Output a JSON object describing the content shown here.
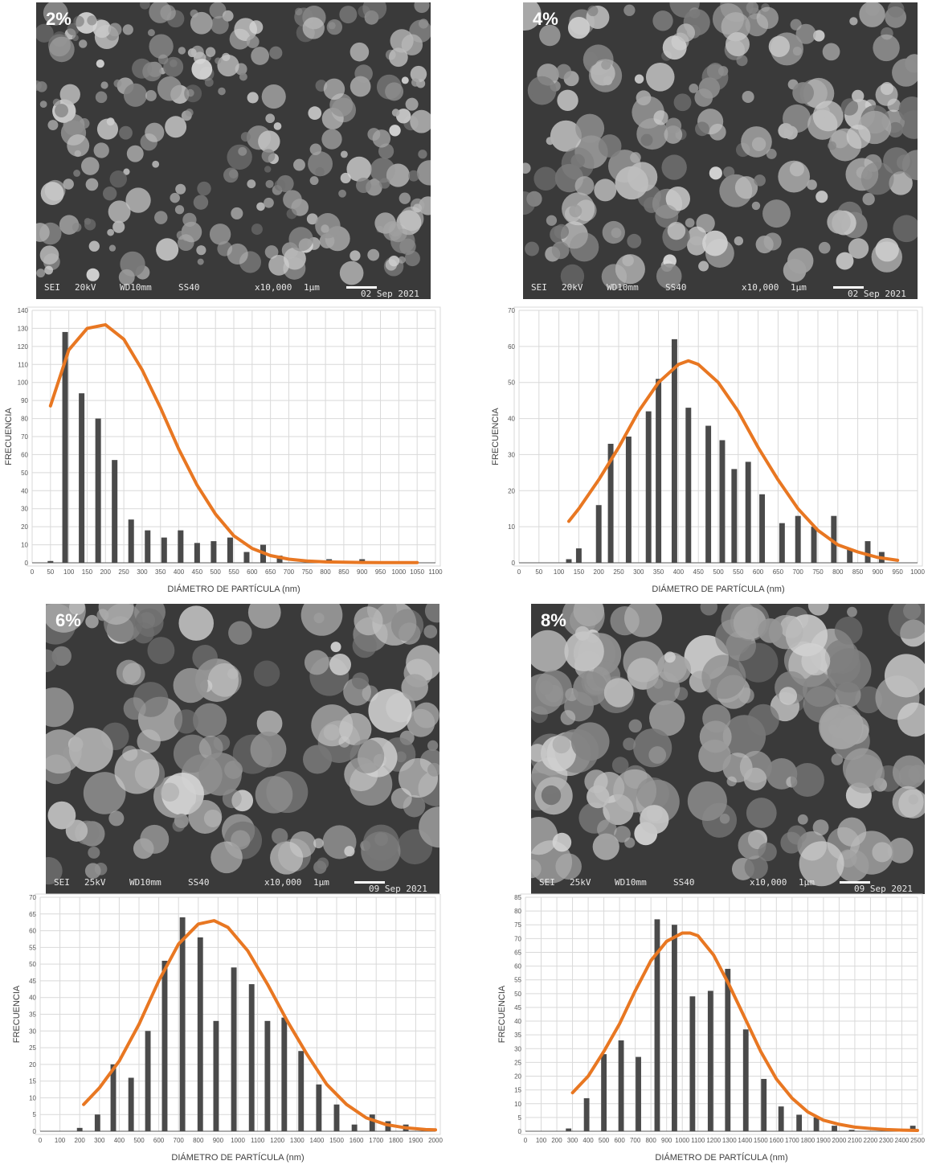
{
  "colors": {
    "bar": "#4a4a4a",
    "curve": "#e87722",
    "grid": "#d9d9d9",
    "axis": "#595959"
  },
  "panels": [
    {
      "label": "2%",
      "sem_info": {
        "mode": "SEI",
        "kv": "20kV",
        "wd": "WD10mm",
        "ss": "SS40",
        "mag": "x10,000",
        "scale": "1µm",
        "date": "02 Sep 2021"
      }
    },
    {
      "label": "4%",
      "sem_info": {
        "mode": "SEI",
        "kv": "20kV",
        "wd": "WD10mm",
        "ss": "SS40",
        "mag": "x10,000",
        "scale": "1µm",
        "date": "02 Sep 2021"
      }
    },
    {
      "label": "6%",
      "sem_info": {
        "mode": "SEI",
        "kv": "25kV",
        "wd": "WD10mm",
        "ss": "SS40",
        "mag": "x10,000",
        "scale": "1µm",
        "date": "09 Sep 2021"
      }
    },
    {
      "label": "8%",
      "sem_info": {
        "mode": "SEI",
        "kv": "25kV",
        "wd": "WD10mm",
        "ss": "SS40",
        "mag": "x10,000",
        "scale": "1µm",
        "date": "09 Sep 2021"
      }
    }
  ],
  "chart_data": [
    {
      "type": "bar",
      "xlabel": "DIÁMETRO DE PARTÍCULA (nm)",
      "ylabel": "FRECUENCIA",
      "xlim": [
        0,
        1100
      ],
      "ylim": [
        0,
        140
      ],
      "xticks": [
        0,
        50,
        100,
        150,
        200,
        250,
        300,
        350,
        400,
        450,
        500,
        550,
        600,
        650,
        700,
        750,
        800,
        850,
        900,
        950,
        1000,
        1050,
        1100
      ],
      "yticks": [
        0,
        10,
        20,
        30,
        40,
        50,
        60,
        70,
        80,
        90,
        100,
        110,
        120,
        130,
        140
      ],
      "x": [
        50,
        90,
        135,
        180,
        225,
        270,
        315,
        360,
        405,
        450,
        495,
        540,
        585,
        630,
        675,
        810,
        900
      ],
      "values": [
        1,
        128,
        94,
        80,
        57,
        24,
        18,
        14,
        18,
        11,
        12,
        14,
        6,
        10,
        4,
        2,
        2
      ],
      "fit_curve": {
        "x": [
          50,
          100,
          150,
          200,
          250,
          300,
          350,
          400,
          450,
          500,
          550,
          600,
          650,
          700,
          750,
          800,
          850,
          900,
          950,
          1000,
          1050
        ],
        "y": [
          87,
          118,
          130,
          132,
          124,
          107,
          86,
          63,
          43,
          27,
          15,
          8,
          4,
          2,
          1,
          0.5,
          0.3,
          0.2,
          0.1,
          0.1,
          0.1
        ]
      },
      "grid": true
    },
    {
      "type": "bar",
      "xlabel": "DIÁMETRO DE PARTÍCULA (nm)",
      "ylabel": "FRECUENCIA",
      "xlim": [
        0,
        1000
      ],
      "ylim": [
        0,
        70
      ],
      "xticks": [
        0,
        50,
        100,
        150,
        200,
        250,
        300,
        350,
        400,
        450,
        500,
        550,
        600,
        650,
        700,
        750,
        800,
        850,
        900,
        950,
        1000
      ],
      "yticks": [
        0,
        10,
        20,
        30,
        40,
        50,
        60,
        70
      ],
      "x": [
        125,
        150,
        200,
        230,
        275,
        325,
        350,
        390,
        425,
        475,
        510,
        540,
        575,
        610,
        660,
        700,
        740,
        790,
        830,
        875,
        910
      ],
      "values": [
        1,
        4,
        16,
        33,
        35,
        42,
        51,
        62,
        43,
        38,
        34,
        26,
        28,
        19,
        11,
        13,
        10,
        13,
        4,
        6,
        3
      ],
      "fit_curve": {
        "x": [
          125,
          150,
          200,
          250,
          300,
          350,
          400,
          425,
          450,
          500,
          550,
          600,
          650,
          700,
          750,
          800,
          850,
          900,
          950
        ],
        "y": [
          11.5,
          15,
          23,
          32,
          42,
          50,
          55,
          56,
          55,
          50,
          42,
          32,
          23,
          15,
          9,
          5,
          3,
          1.5,
          0.7
        ]
      },
      "grid": true
    },
    {
      "type": "bar",
      "xlabel": "DIÁMETRO DE PARTÍCULA (nm)",
      "ylabel": "FRECUENCIA",
      "xlim": [
        0,
        2000
      ],
      "ylim": [
        0,
        70
      ],
      "xticks": [
        0,
        100,
        200,
        300,
        400,
        500,
        600,
        700,
        800,
        900,
        1000,
        1100,
        1200,
        1300,
        1400,
        1500,
        1600,
        1700,
        1800,
        1900,
        2000
      ],
      "yticks": [
        0,
        5,
        10,
        15,
        20,
        25,
        30,
        35,
        40,
        45,
        50,
        55,
        60,
        65,
        70
      ],
      "x": [
        200,
        290,
        370,
        460,
        545,
        630,
        720,
        810,
        890,
        980,
        1070,
        1150,
        1235,
        1320,
        1410,
        1500,
        1590,
        1680,
        1760,
        1850
      ],
      "values": [
        1,
        5,
        20,
        16,
        30,
        51,
        64,
        58,
        33,
        49,
        44,
        33,
        34,
        24,
        14,
        8,
        2,
        5,
        3,
        2
      ],
      "fit_curve": {
        "x": [
          220,
          300,
          400,
          500,
          600,
          700,
          800,
          880,
          950,
          1050,
          1150,
          1250,
          1350,
          1450,
          1550,
          1650,
          1750,
          1850,
          1950,
          2000
        ],
        "y": [
          8,
          13,
          21,
          32,
          45,
          56,
          62,
          63,
          61,
          54,
          44,
          33,
          23,
          14,
          8,
          4,
          2,
          1,
          0.5,
          0.4
        ]
      },
      "grid": true
    },
    {
      "type": "bar",
      "xlabel": "DIÁMETRO DE PARTÍCULA (nm)",
      "ylabel": "FRECUENCIA",
      "xlim": [
        0,
        2500
      ],
      "ylim": [
        0,
        85
      ],
      "xticks": [
        0,
        100,
        200,
        300,
        400,
        500,
        600,
        700,
        800,
        900,
        1000,
        1100,
        1200,
        1300,
        1400,
        1500,
        1600,
        1700,
        1800,
        1900,
        2000,
        2100,
        2200,
        2300,
        2400,
        2500
      ],
      "yticks": [
        0,
        5,
        10,
        15,
        20,
        25,
        30,
        35,
        40,
        45,
        50,
        55,
        60,
        65,
        70,
        75,
        80,
        85
      ],
      "x": [
        275,
        390,
        500,
        610,
        720,
        840,
        950,
        1065,
        1180,
        1290,
        1405,
        1520,
        1630,
        1745,
        1855,
        1970,
        2080,
        2470
      ],
      "values": [
        1,
        12,
        28,
        33,
        27,
        77,
        75,
        49,
        51,
        59,
        37,
        19,
        9,
        6,
        5,
        2,
        0.5,
        2
      ],
      "fit_curve": {
        "x": [
          300,
          400,
          500,
          600,
          700,
          800,
          900,
          1000,
          1050,
          1100,
          1200,
          1300,
          1400,
          1500,
          1600,
          1700,
          1800,
          1900,
          2000,
          2100,
          2200,
          2300,
          2400,
          2500
        ],
        "y": [
          14,
          20,
          29,
          39,
          51,
          62,
          69,
          72,
          72,
          71,
          64,
          53,
          41,
          29,
          19,
          12,
          7,
          4,
          2.5,
          1.5,
          1,
          0.6,
          0.4,
          0.3
        ]
      },
      "grid": true
    }
  ]
}
